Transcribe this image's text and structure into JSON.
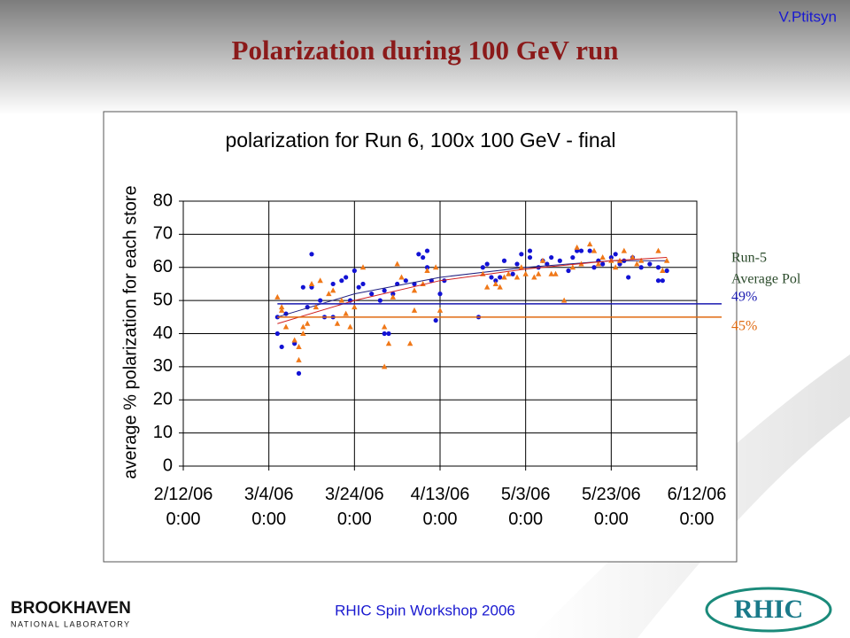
{
  "header": {
    "title": "Polarization during 100 GeV run",
    "author": "V.Ptitsyn"
  },
  "footer": {
    "text": "RHIC Spin  Workshop 2006",
    "lab_name": "BROOKHAVEN",
    "lab_sub": "NATIONAL LABORATORY",
    "rhic_logo": "RHIC"
  },
  "chart_data": {
    "type": "scatter",
    "title": "polarization for Run 6, 100x 100 GeV - final",
    "y_label": "average % polarization for each store",
    "xlim": [
      "2006-02-12",
      "2006-06-12"
    ],
    "xticks": [
      {
        "value": "2006-02-12",
        "label": "2/12/06 0:00"
      },
      {
        "value": "2006-03-04",
        "label": "3/4/06 0:00"
      },
      {
        "value": "2006-03-24",
        "label": "3/24/06 0:00"
      },
      {
        "value": "2006-04-13",
        "label": "4/13/06 0:00"
      },
      {
        "value": "2006-05-03",
        "label": "5/3/06 0:00"
      },
      {
        "value": "2006-05-23",
        "label": "5/23/06 0:00"
      },
      {
        "value": "2006-06-12",
        "label": "6/12/06 0:00"
      }
    ],
    "ylim": [
      0,
      80
    ],
    "yticks": [
      0,
      10,
      20,
      30,
      40,
      50,
      60,
      70,
      80
    ],
    "grid": true,
    "series": [
      {
        "color": "#1212d4",
        "marker": "circle",
        "x": [
          "2006-03-06",
          "2006-03-06",
          "2006-03-07",
          "2006-03-08",
          "2006-03-10",
          "2006-03-11",
          "2006-03-12",
          "2006-03-13",
          "2006-03-14",
          "2006-03-14",
          "2006-03-16",
          "2006-03-17",
          "2006-03-19",
          "2006-03-19",
          "2006-03-21",
          "2006-03-22",
          "2006-03-23",
          "2006-03-24",
          "2006-03-25",
          "2006-03-26",
          "2006-03-28",
          "2006-03-30",
          "2006-03-31",
          "2006-03-31",
          "2006-04-01",
          "2006-04-02",
          "2006-04-03",
          "2006-04-05",
          "2006-04-07",
          "2006-04-08",
          "2006-04-09",
          "2006-04-10",
          "2006-04-10",
          "2006-04-11",
          "2006-04-12",
          "2006-04-13",
          "2006-04-14",
          "2006-04-22",
          "2006-04-23",
          "2006-04-24",
          "2006-04-25",
          "2006-04-26",
          "2006-04-27",
          "2006-04-28",
          "2006-04-30",
          "2006-05-01",
          "2006-05-02",
          "2006-05-04",
          "2006-05-04",
          "2006-05-06",
          "2006-05-07",
          "2006-05-08",
          "2006-05-09",
          "2006-05-11",
          "2006-05-13",
          "2006-05-14",
          "2006-05-15",
          "2006-05-16",
          "2006-05-18",
          "2006-05-19",
          "2006-05-20",
          "2006-05-21",
          "2006-05-23",
          "2006-05-24",
          "2006-05-25",
          "2006-05-26",
          "2006-05-27",
          "2006-05-28",
          "2006-05-30",
          "2006-06-01",
          "2006-06-03",
          "2006-06-03",
          "2006-06-04",
          "2006-06-05"
        ],
        "values": [
          45,
          40,
          36,
          46,
          37,
          28,
          54,
          48,
          64,
          54,
          50,
          45,
          55,
          45,
          56,
          57,
          50,
          59,
          54,
          55,
          52,
          50,
          53,
          40,
          40,
          52,
          55,
          56,
          55,
          64,
          63,
          60,
          65,
          56,
          44,
          52,
          56,
          45,
          60,
          61,
          57,
          56,
          57,
          62,
          58,
          61,
          64,
          65,
          63,
          60,
          62,
          61,
          63,
          62,
          59,
          63,
          65,
          65,
          65,
          60,
          62,
          61,
          63,
          64,
          61,
          62,
          57,
          63,
          60,
          61,
          56,
          60,
          56,
          59
        ],
        "fit_x": [
          "2006-03-06",
          "2006-03-24",
          "2006-04-13",
          "2006-05-03",
          "2006-05-23",
          "2006-06-05"
        ],
        "fit_values": [
          45,
          52,
          57,
          60,
          62,
          62
        ]
      },
      {
        "color": "#f07818",
        "marker": "triangle",
        "x": [
          "2006-03-06",
          "2006-03-07",
          "2006-03-07",
          "2006-03-08",
          "2006-03-10",
          "2006-03-11",
          "2006-03-11",
          "2006-03-12",
          "2006-03-12",
          "2006-03-13",
          "2006-03-14",
          "2006-03-15",
          "2006-03-16",
          "2006-03-18",
          "2006-03-19",
          "2006-03-20",
          "2006-03-21",
          "2006-03-22",
          "2006-03-23",
          "2006-03-24",
          "2006-03-26",
          "2006-03-31",
          "2006-03-31",
          "2006-04-01",
          "2006-04-02",
          "2006-04-03",
          "2006-04-04",
          "2006-04-06",
          "2006-04-07",
          "2006-04-07",
          "2006-04-09",
          "2006-04-10",
          "2006-04-12",
          "2006-04-13",
          "2006-04-23",
          "2006-04-24",
          "2006-04-26",
          "2006-04-27",
          "2006-04-28",
          "2006-04-29",
          "2006-05-01",
          "2006-05-02",
          "2006-05-03",
          "2006-05-05",
          "2006-05-06",
          "2006-05-07",
          "2006-05-09",
          "2006-05-10",
          "2006-05-12",
          "2006-05-14",
          "2006-05-15",
          "2006-05-16",
          "2006-05-18",
          "2006-05-19",
          "2006-05-20",
          "2006-05-21",
          "2006-05-23",
          "2006-05-24",
          "2006-05-25",
          "2006-05-26",
          "2006-05-28",
          "2006-05-29",
          "2006-05-30",
          "2006-06-03",
          "2006-06-04",
          "2006-06-05"
        ],
        "values": [
          51,
          47,
          48,
          42,
          38,
          36,
          32,
          40,
          42,
          43,
          55,
          48,
          56,
          52,
          53,
          43,
          50,
          46,
          42,
          48,
          60,
          42,
          30,
          37,
          51,
          61,
          57,
          37,
          53,
          47,
          55,
          59,
          60,
          47,
          58,
          54,
          55,
          54,
          57,
          58,
          57,
          60,
          58,
          57,
          58,
          62,
          58,
          58,
          50,
          60,
          66,
          61,
          67,
          65,
          61,
          63,
          62,
          60,
          62,
          65,
          63,
          61,
          62,
          65,
          59,
          62
        ],
        "fit_x": [
          "2006-03-06",
          "2006-03-24",
          "2006-04-13",
          "2006-05-03",
          "2006-05-23",
          "2006-06-05"
        ],
        "fit_values": [
          43,
          50,
          56,
          59.5,
          62,
          63
        ]
      }
    ],
    "annotation": [
      "Run-5",
      "Average Pol"
    ],
    "reference_lines": [
      {
        "label": "49%",
        "value": 49,
        "color": "#1a1ab0"
      },
      {
        "label": "45%",
        "value": 45,
        "color": "#e06a10"
      }
    ]
  }
}
